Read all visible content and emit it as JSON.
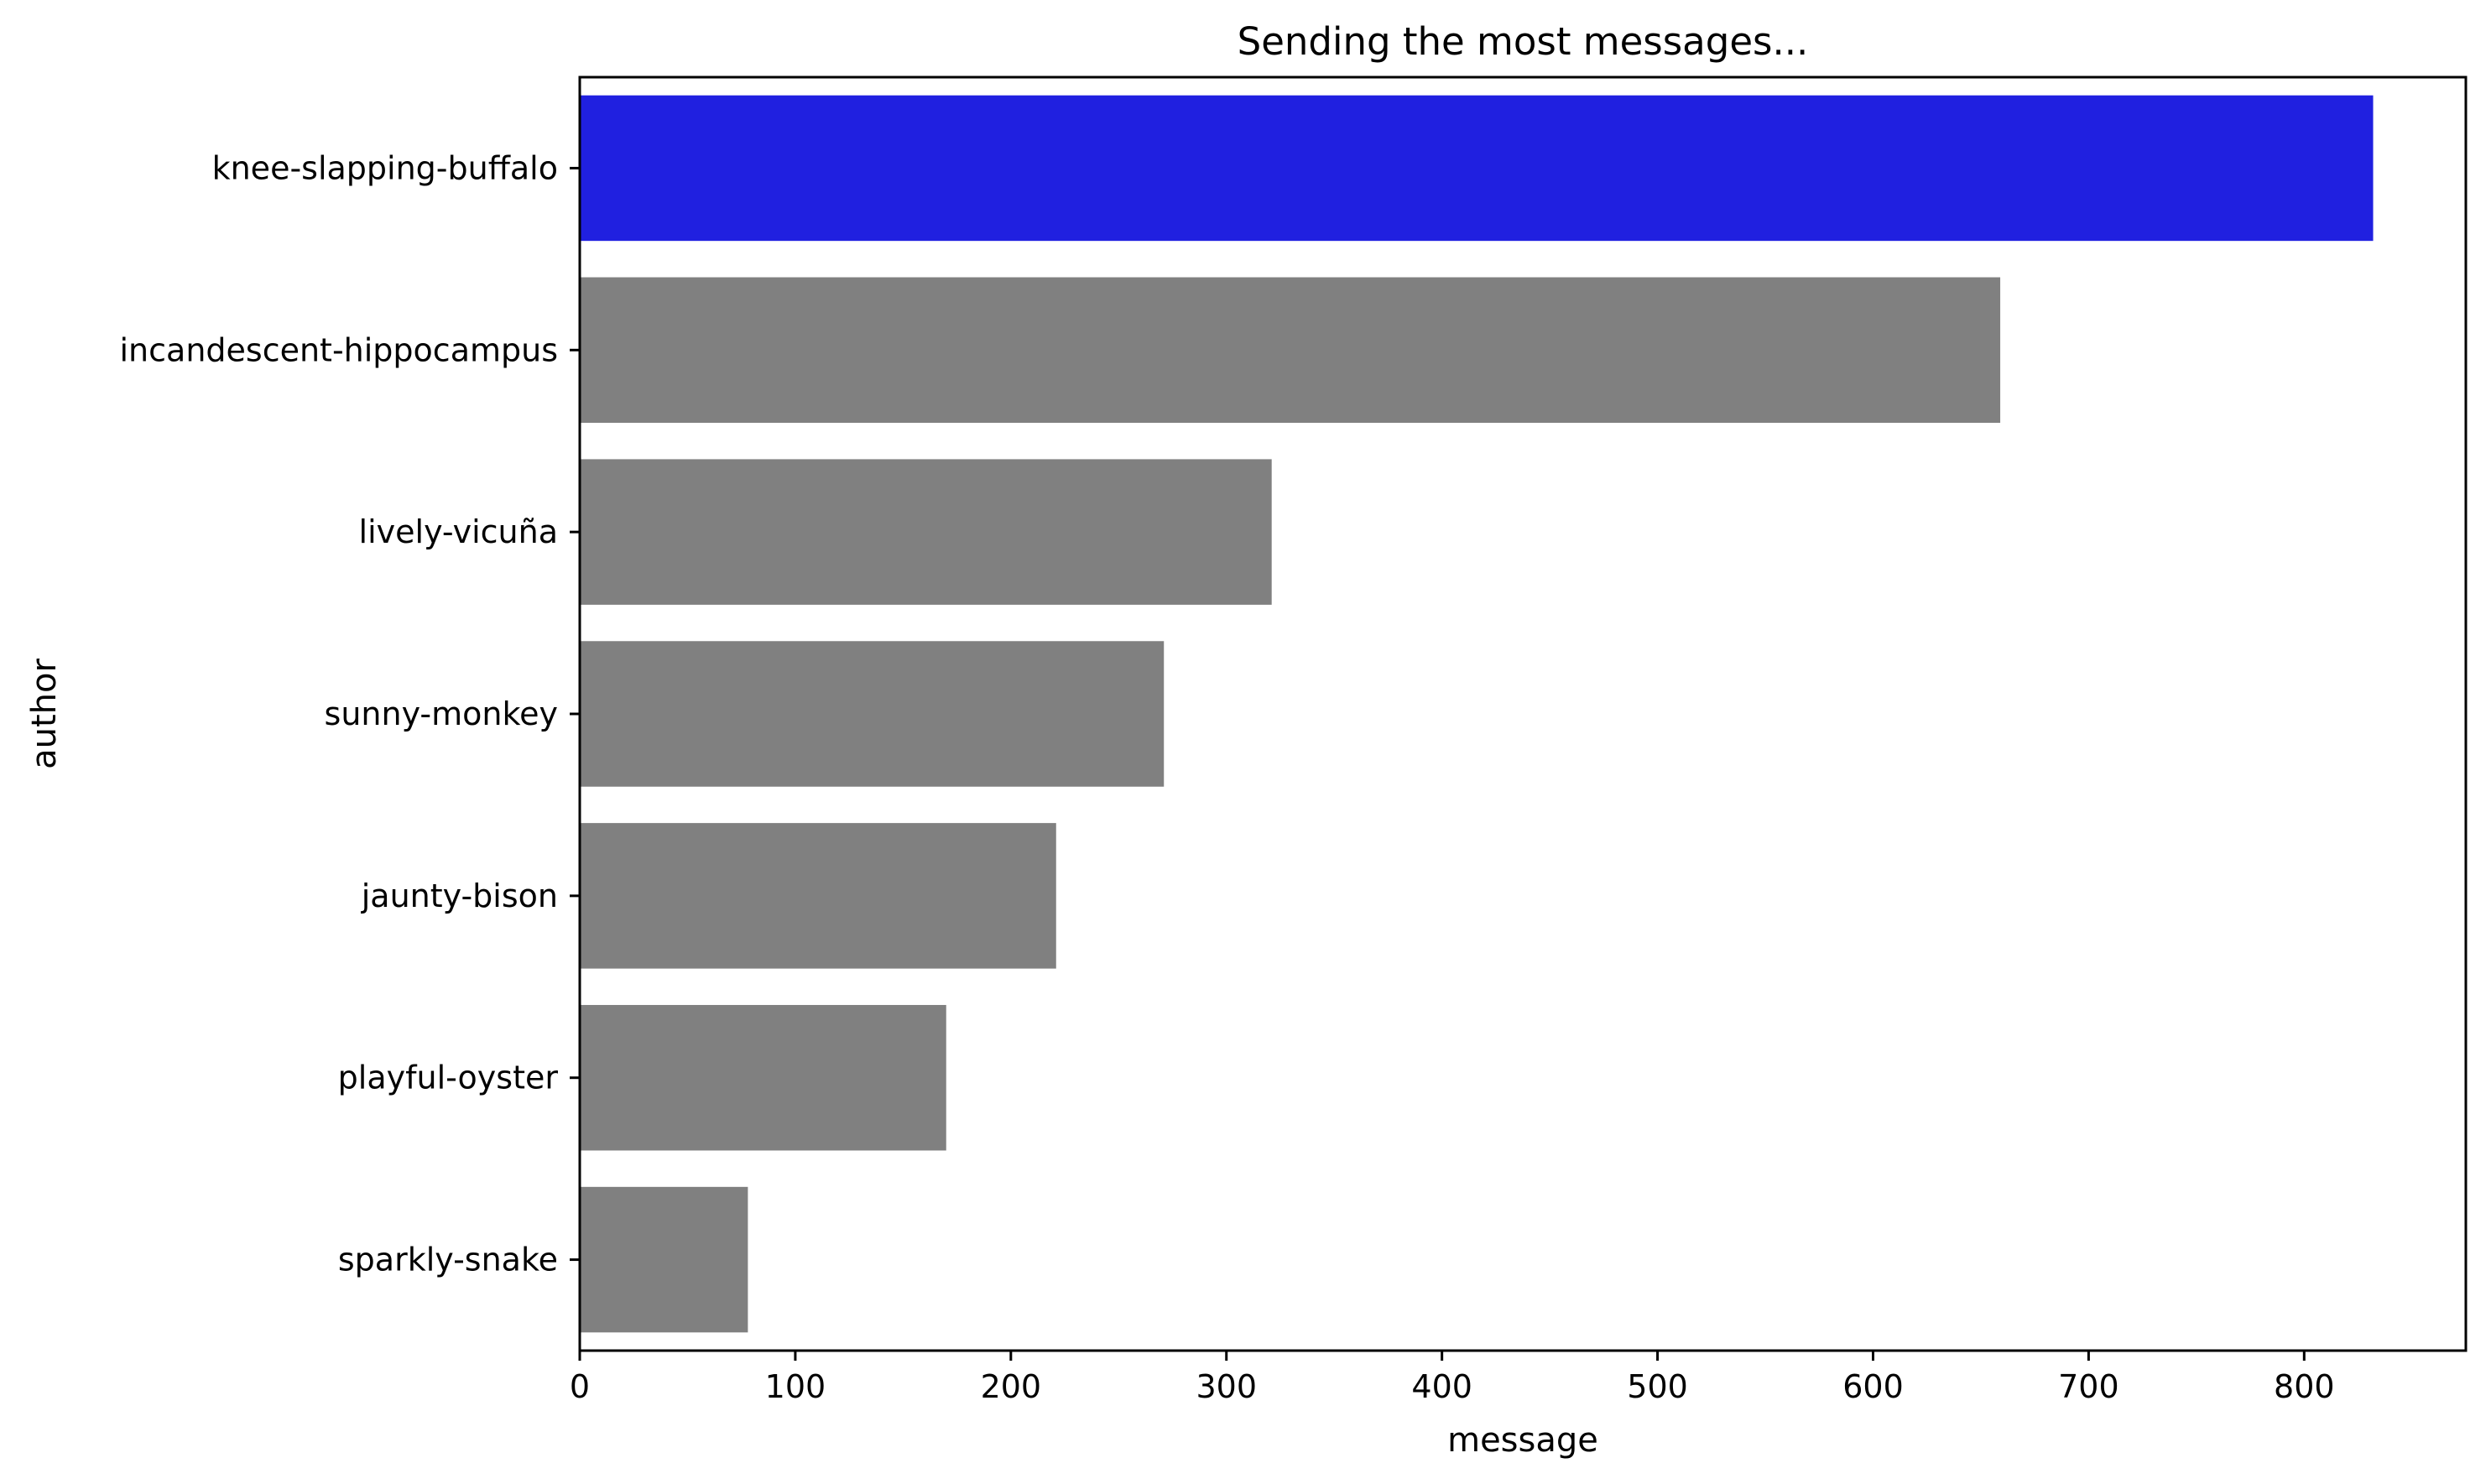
{
  "chart_data": {
    "type": "bar",
    "orientation": "horizontal",
    "title": "Sending the most messages...",
    "xlabel": "message",
    "ylabel": "author",
    "categories": [
      "knee-slapping-buffalo",
      "incandescent-hippocampus",
      "lively-vicuña",
      "sunny-monkey",
      "jaunty-bison",
      "playful-oyster",
      "sparkly-snake"
    ],
    "values": [
      832,
      659,
      321,
      271,
      221,
      170,
      78
    ],
    "highlight_index": 0,
    "colors": {
      "highlight": "#2020E0",
      "default": "#808080"
    },
    "xlim": [
      0,
      875
    ],
    "xticks": [
      0,
      100,
      200,
      300,
      400,
      500,
      600,
      700,
      800
    ],
    "grid": false,
    "legend": "none"
  }
}
